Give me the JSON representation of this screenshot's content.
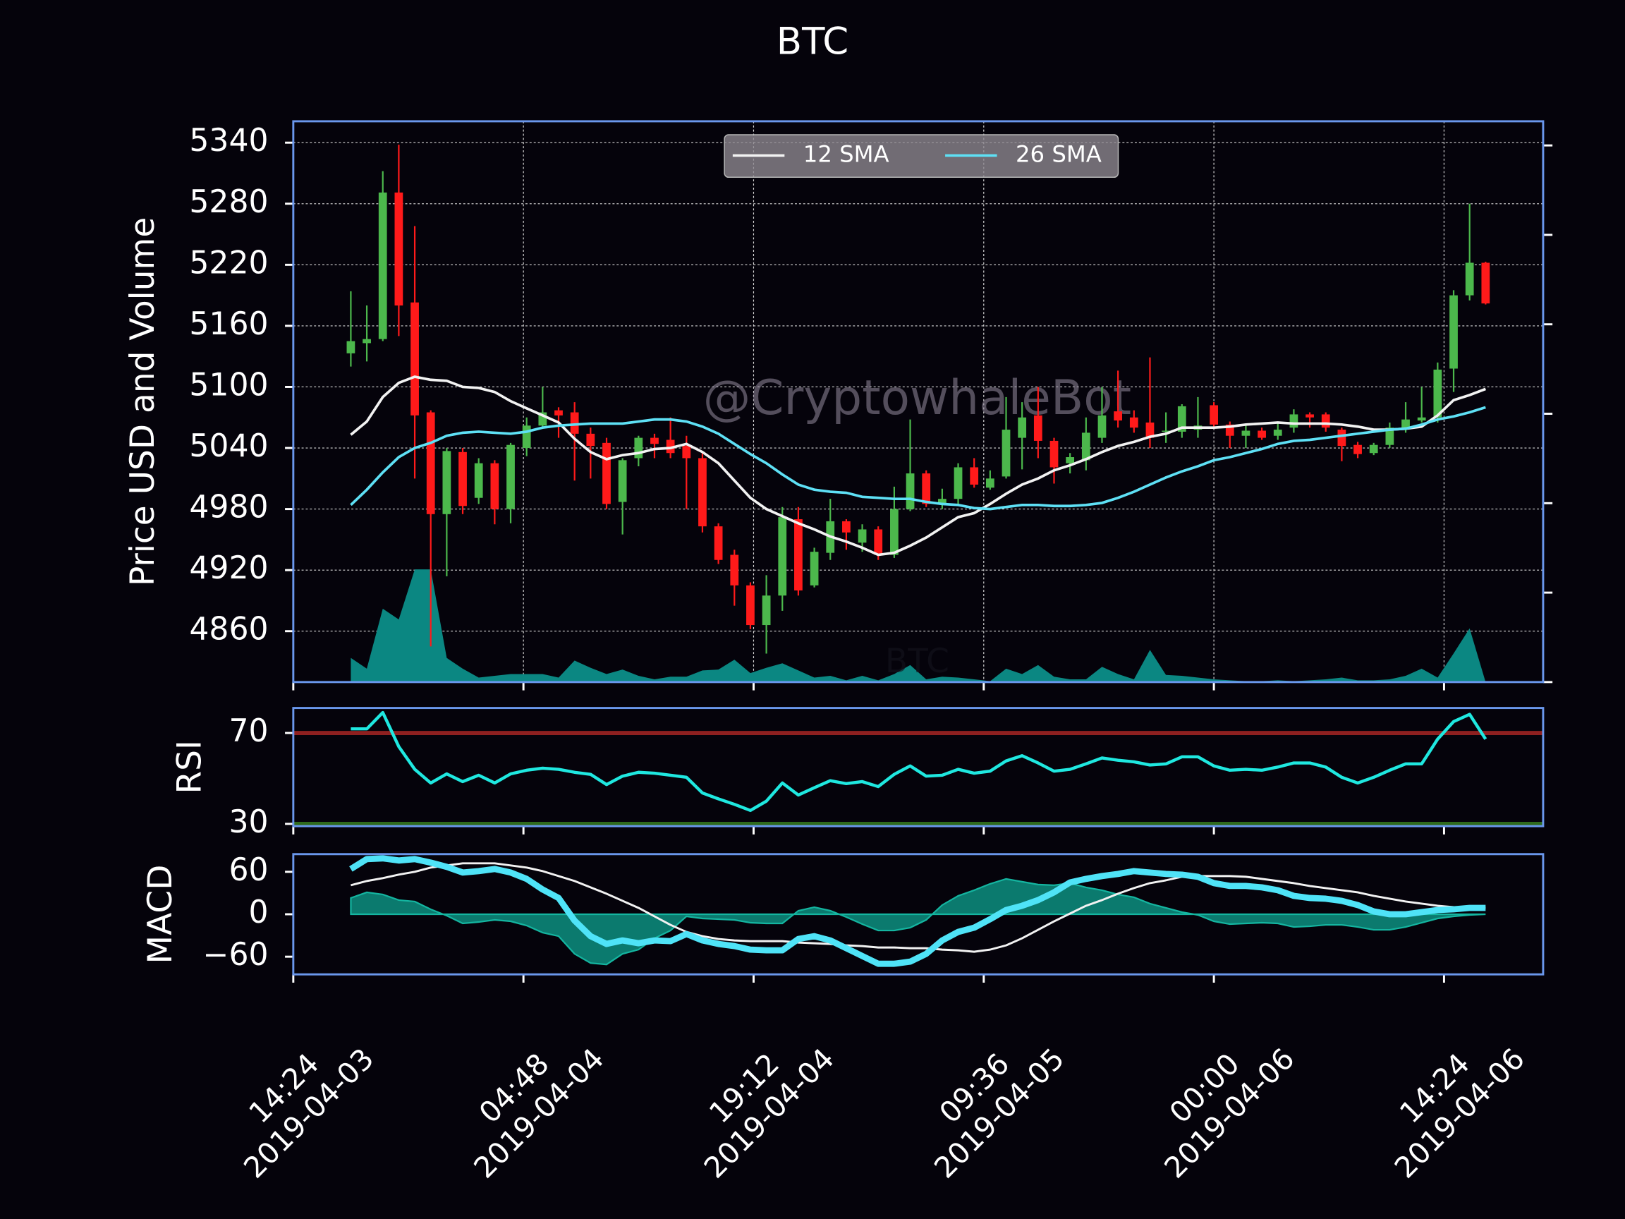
{
  "chart_data": [
    {
      "type": "candlestick",
      "title": "BTC",
      "ylabel": "Price USD and Volume",
      "watermarks": [
        "@CryptowhaleBot",
        "BTC"
      ],
      "x": [
        "2019-04-03 18:00",
        "2019-04-03 19:00",
        "2019-04-03 20:00",
        "2019-04-03 21:00",
        "2019-04-03 22:00",
        "2019-04-03 23:00",
        "2019-04-04 00:00",
        "2019-04-04 01:00",
        "2019-04-04 02:00",
        "2019-04-04 03:00",
        "2019-04-04 04:00",
        "2019-04-04 05:00",
        "2019-04-04 06:00",
        "2019-04-04 07:00",
        "2019-04-04 08:00",
        "2019-04-04 09:00",
        "2019-04-04 10:00",
        "2019-04-04 11:00",
        "2019-04-04 12:00",
        "2019-04-04 13:00",
        "2019-04-04 14:00",
        "2019-04-04 15:00",
        "2019-04-04 16:00",
        "2019-04-04 17:00",
        "2019-04-04 18:00",
        "2019-04-04 19:00",
        "2019-04-04 20:00",
        "2019-04-04 21:00",
        "2019-04-04 22:00",
        "2019-04-04 23:00",
        "2019-04-05 00:00",
        "2019-04-05 01:00",
        "2019-04-05 02:00",
        "2019-04-05 03:00",
        "2019-04-05 04:00",
        "2019-04-05 05:00",
        "2019-04-05 06:00",
        "2019-04-05 07:00",
        "2019-04-05 08:00",
        "2019-04-05 09:00",
        "2019-04-05 10:00",
        "2019-04-05 11:00",
        "2019-04-05 12:00",
        "2019-04-05 13:00",
        "2019-04-05 14:00",
        "2019-04-05 15:00",
        "2019-04-05 16:00",
        "2019-04-05 17:00",
        "2019-04-05 18:00",
        "2019-04-05 19:00",
        "2019-04-05 20:00",
        "2019-04-05 21:00",
        "2019-04-05 22:00",
        "2019-04-05 23:00",
        "2019-04-06 00:00",
        "2019-04-06 01:00",
        "2019-04-06 02:00",
        "2019-04-06 03:00",
        "2019-04-06 04:00",
        "2019-04-06 05:00",
        "2019-04-06 06:00",
        "2019-04-06 07:00",
        "2019-04-06 08:00",
        "2019-04-06 09:00",
        "2019-04-06 10:00",
        "2019-04-06 11:00",
        "2019-04-06 12:00",
        "2019-04-06 13:00",
        "2019-04-06 14:00",
        "2019-04-06 15:00",
        "2019-04-06 16:00",
        "2019-04-06 17:00"
      ],
      "open": [
        5133,
        5143,
        5147,
        5291,
        5183,
        5075,
        4975,
        5036,
        4991,
        5025,
        4980,
        5040,
        5062,
        5077,
        5075,
        5054,
        5045,
        4987,
        5030,
        5050,
        5048,
        5042,
        5030,
        4963,
        4935,
        4905,
        4866,
        4895,
        4970,
        4905,
        4937,
        4968,
        4947,
        4960,
        4935,
        4980,
        5015,
        4985,
        4990,
        5021,
        5001,
        5012,
        5050,
        5072,
        5047,
        5025,
        5028,
        5050,
        5076,
        5070,
        5065,
        5056,
        5056,
        5058,
        5082,
        5063,
        5052,
        5057,
        5052,
        5060,
        5073,
        5073,
        5058,
        5043,
        5035,
        5043,
        5060,
        5067,
        5070,
        5118,
        5190,
        5222
      ],
      "high": [
        5194,
        5180,
        5312,
        5338,
        5258,
        5077,
        5040,
        5040,
        5030,
        5028,
        5045,
        5070,
        5100,
        5080,
        5085,
        5060,
        5050,
        5030,
        5052,
        5054,
        5070,
        5052,
        5035,
        4966,
        4940,
        4908,
        4915,
        4982,
        4982,
        4942,
        4990,
        4970,
        4965,
        4963,
        5002,
        5068,
        5018,
        5000,
        5025,
        5030,
        5018,
        5090,
        5085,
        5100,
        5050,
        5035,
        5070,
        5100,
        5116,
        5077,
        5129,
        5075,
        5083,
        5090,
        5085,
        5066,
        5063,
        5060,
        5064,
        5078,
        5075,
        5075,
        5060,
        5046,
        5045,
        5065,
        5085,
        5100,
        5124,
        5195,
        5280,
        5223
      ],
      "low": [
        5120,
        5125,
        5145,
        5150,
        5010,
        4845,
        4914,
        4975,
        4985,
        4965,
        4966,
        5032,
        5060,
        5050,
        5008,
        5010,
        4980,
        4955,
        5022,
        5030,
        5030,
        4980,
        4957,
        4926,
        4885,
        4862,
        4838,
        4880,
        4895,
        4903,
        4930,
        4940,
        4938,
        4930,
        4932,
        4978,
        4982,
        4980,
        4983,
        5001,
        4999,
        5010,
        5019,
        5030,
        5005,
        5015,
        5018,
        5045,
        5060,
        5055,
        5040,
        5045,
        5050,
        5050,
        5060,
        5040,
        5040,
        5048,
        5048,
        5055,
        5060,
        5056,
        5027,
        5030,
        5033,
        5040,
        5055,
        5065,
        5065,
        5095,
        5185,
        5181
      ],
      "close": [
        5145,
        5147,
        5291,
        5180,
        5072,
        4975,
        5037,
        4983,
        5025,
        4980,
        5043,
        5062,
        5075,
        5072,
        5054,
        5042,
        4985,
        5028,
        5050,
        5044,
        5035,
        5030,
        4963,
        4930,
        4905,
        4866,
        4895,
        4972,
        4900,
        4938,
        4968,
        4957,
        4960,
        4935,
        4980,
        5015,
        4985,
        4990,
        5021,
        5004,
        5010,
        5058,
        5070,
        5047,
        5021,
        5031,
        5055,
        5072,
        5067,
        5060,
        5050,
        5057,
        5081,
        5062,
        5063,
        5052,
        5057,
        5050,
        5058,
        5073,
        5070,
        5060,
        5042,
        5034,
        5043,
        5060,
        5068,
        5070,
        5117,
        5190,
        5222,
        5182
      ],
      "up_color": "#4cb84c",
      "down_color": "#ff1a1a",
      "series": [
        {
          "name": "12 SMA",
          "color": "#f2f2f2",
          "values": [
            5053,
            5066,
            5090,
            5104,
            5110,
            5107,
            5106,
            5100,
            5099,
            5095,
            5086,
            5079,
            5072,
            5065,
            5049,
            5036,
            5029,
            5033,
            5035,
            5039,
            5040,
            5044,
            5036,
            5025,
            5008,
            4991,
            4980,
            4973,
            4966,
            4960,
            4953,
            4948,
            4942,
            4935,
            4937,
            4944,
            4952,
            4962,
            4972,
            4976,
            4985,
            4995,
            5004,
            5010,
            5018,
            5023,
            5029,
            5036,
            5042,
            5046,
            5051,
            5054,
            5060,
            5060,
            5060,
            5061,
            5063,
            5064,
            5065,
            5064,
            5064,
            5064,
            5063,
            5061,
            5058,
            5058,
            5059,
            5061,
            5072,
            5087,
            5092,
            5098
          ]
        },
        {
          "name": "26 SMA",
          "color": "#5ee0f5",
          "values": [
            4984,
            4999,
            5016,
            5031,
            5040,
            5045,
            5052,
            5055,
            5056,
            5055,
            5054,
            5056,
            5060,
            5062,
            5063,
            5064,
            5064,
            5064,
            5066,
            5068,
            5068,
            5066,
            5061,
            5054,
            5044,
            5034,
            5025,
            5014,
            5004,
            4999,
            4997,
            4996,
            4992,
            4991,
            4990,
            4990,
            4987,
            4985,
            4984,
            4981,
            4980,
            4982,
            4984,
            4984,
            4983,
            4983,
            4984,
            4986,
            4991,
            4997,
            5004,
            5011,
            5017,
            5022,
            5028,
            5031,
            5035,
            5039,
            5044,
            5047,
            5048,
            5050,
            5052,
            5054,
            5056,
            5058,
            5059,
            5063,
            5068,
            5071,
            5075,
            5080
          ]
        }
      ],
      "volume": {
        "color": "#0b8782",
        "axis": "y2",
        "values": [
          0.27,
          0.15,
          0.82,
          0.7,
          1.26,
          1.26,
          0.27,
          0.15,
          0.05,
          0.07,
          0.09,
          0.09,
          0.09,
          0.05,
          0.24,
          0.16,
          0.09,
          0.14,
          0.07,
          0.03,
          0.06,
          0.06,
          0.13,
          0.14,
          0.25,
          0.1,
          0.16,
          0.21,
          0.13,
          0.05,
          0.07,
          0.02,
          0.07,
          0.02,
          0.09,
          0.19,
          0.03,
          0.06,
          0.05,
          0.03,
          0.01,
          0.15,
          0.09,
          0.19,
          0.06,
          0.03,
          0.03,
          0.17,
          0.09,
          0.03,
          0.36,
          0.08,
          0.07,
          0.05,
          0.03,
          0.02,
          0.01,
          0.01,
          0.02,
          0.01,
          0.02,
          0.03,
          0.05,
          0.02,
          0.02,
          0.03,
          0.07,
          0.15,
          0.05,
          0.32,
          0.6,
          0
        ]
      },
      "xlim": [
        "2019-04-03 14:24",
        "2019-04-06 20:36"
      ],
      "xticks": [
        {
          "value": "2019-04-03 14:24",
          "label": [
            "14:24",
            "2019-04-03"
          ]
        },
        {
          "value": "2019-04-04 04:48",
          "label": [
            "04:48",
            "2019-04-04"
          ]
        },
        {
          "value": "2019-04-04 19:12",
          "label": [
            "19:12",
            "2019-04-04"
          ]
        },
        {
          "value": "2019-04-05 09:36",
          "label": [
            "09:36",
            "2019-04-05"
          ]
        },
        {
          "value": "2019-04-06 00:00",
          "label": [
            "00:00",
            "2019-04-06"
          ]
        },
        {
          "value": "2019-04-06 14:24",
          "label": [
            "14:24",
            "2019-04-06"
          ]
        }
      ],
      "ylim": [
        4810,
        5361
      ],
      "yticks": [
        4860,
        4920,
        4980,
        5040,
        5100,
        5160,
        5220,
        5280,
        5340
      ],
      "y2lim": [
        0,
        6.27
      ],
      "y2ticks": [
        0,
        1,
        2,
        3,
        4,
        5,
        6
      ],
      "grid": true,
      "legend": "upper center"
    },
    {
      "type": "line",
      "ylabel": "RSI",
      "series": [
        {
          "color": "#1fe8e0",
          "line_width": 3,
          "values": [
            71.8,
            71.8,
            79,
            64,
            54,
            48,
            52,
            48.6,
            51.4,
            48,
            52,
            53.6,
            54.5,
            54,
            52.7,
            51.8,
            47.3,
            51,
            52.7,
            52.3,
            51.4,
            50.5,
            43.6,
            41,
            38.6,
            35.9,
            40,
            48,
            42.7,
            45.9,
            49,
            47.7,
            48.6,
            46.4,
            51.8,
            55.5,
            51,
            51.4,
            54,
            52.3,
            53.2,
            57.7,
            60,
            56.8,
            53.2,
            54,
            56.4,
            59,
            58,
            57.3,
            55.9,
            56.4,
            59.5,
            59.5,
            55.5,
            53.6,
            54,
            53.6,
            55,
            56.8,
            56.8,
            55,
            50.5,
            48,
            50.5,
            53.6,
            56.4,
            56.4,
            67.3,
            75,
            78.2,
            67.3
          ]
        }
      ],
      "hlines": [
        {
          "value": 70,
          "color": "#8e2020"
        },
        {
          "value": 30,
          "color": "#2f6a1c"
        }
      ],
      "ylim": [
        29,
        81
      ],
      "yticks": [
        30,
        70
      ],
      "grid": false
    },
    {
      "type": "line",
      "ylabel": "MACD",
      "series": [
        {
          "color": "#0d8f80",
          "fill": true,
          "values": [
            23,
            31,
            28,
            20,
            18,
            7,
            -2,
            -13,
            -11,
            -8,
            -10,
            -16,
            -26,
            -31,
            -56,
            -69,
            -71,
            -56,
            -50,
            -34,
            -23,
            -3,
            -6,
            -7,
            -8,
            -12,
            -13,
            -13,
            5,
            10,
            5,
            -4,
            -14,
            -23,
            -23,
            -19,
            -8,
            13,
            26,
            34,
            43,
            50,
            46,
            42,
            41,
            44,
            38,
            34,
            28,
            24,
            15,
            9,
            3,
            -1,
            -10,
            -14,
            -13,
            -12,
            -13,
            -18,
            -17,
            -15,
            -15,
            -18,
            -22,
            -22,
            -18,
            -12,
            -6,
            -3,
            -1,
            0
          ]
        },
        {
          "color": "#f2f2f2",
          "line_width": 2,
          "values": [
            41,
            47,
            51,
            56,
            60,
            66,
            69,
            72,
            72,
            72,
            69,
            66,
            61,
            54,
            47,
            38,
            29,
            19,
            9,
            -3,
            -15,
            -25,
            -31,
            -35,
            -37,
            -38,
            -38,
            -38,
            -40,
            -41,
            -42,
            -44,
            -45,
            -47,
            -47,
            -48,
            -48,
            -50,
            -51,
            -53,
            -50,
            -44,
            -34,
            -22,
            -10,
            1,
            12,
            20,
            29,
            37,
            44,
            48,
            53,
            54,
            54,
            54,
            53,
            50,
            47,
            44,
            40,
            37,
            34,
            31,
            26,
            22,
            18,
            15,
            12,
            10,
            10,
            9
          ]
        },
        {
          "color": "#4fe3f7",
          "line_width": 6,
          "values": [
            64,
            78,
            79,
            76,
            78,
            73,
            67,
            59,
            61,
            64,
            59,
            50,
            35,
            23,
            -9,
            -31,
            -42,
            -37,
            -41,
            -37,
            -38,
            -28,
            -37,
            -42,
            -45,
            -50,
            -51,
            -51,
            -35,
            -31,
            -37,
            -48,
            -59,
            -70,
            -70,
            -67,
            -56,
            -37,
            -25,
            -19,
            -7,
            6,
            12,
            20,
            31,
            45,
            50,
            54,
            57,
            61,
            59,
            57,
            56,
            53,
            44,
            40,
            40,
            38,
            34,
            26,
            23,
            22,
            19,
            13,
            4,
            0,
            0,
            3,
            6,
            7,
            9,
            9
          ]
        }
      ],
      "ylim": [
        -85,
        85
      ],
      "yticks": [
        60,
        0,
        {
          "value": -60,
          "label": "−60"
        }
      ],
      "grid": false
    }
  ]
}
